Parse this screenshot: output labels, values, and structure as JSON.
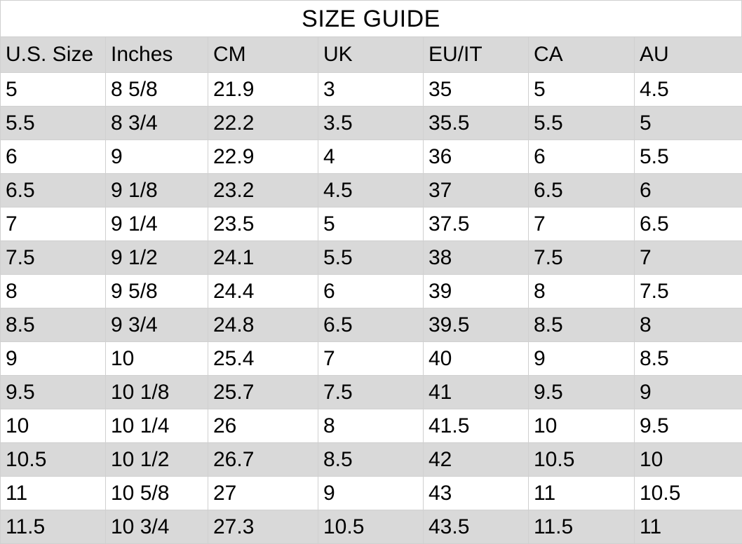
{
  "title": "SIZE GUIDE",
  "table": {
    "headers": [
      "U.S. Size",
      "Inches",
      "CM",
      "UK",
      "EU/IT",
      "CA",
      "AU"
    ],
    "rows": [
      [
        "5",
        "8 5/8",
        "21.9",
        "3",
        "35",
        "5",
        "4.5"
      ],
      [
        "5.5",
        "8 3/4",
        "22.2",
        "3.5",
        "35.5",
        "5.5",
        "5"
      ],
      [
        "6",
        "9",
        "22.9",
        "4",
        "36",
        "6",
        "5.5"
      ],
      [
        "6.5",
        "9 1/8",
        "23.2",
        "4.5",
        "37",
        "6.5",
        "6"
      ],
      [
        "7",
        "9 1/4",
        "23.5",
        "5",
        "37.5",
        "7",
        "6.5"
      ],
      [
        "7.5",
        "9 1/2",
        "24.1",
        "5.5",
        "38",
        "7.5",
        "7"
      ],
      [
        "8",
        "9 5/8",
        "24.4",
        "6",
        "39",
        "8",
        "7.5"
      ],
      [
        "8.5",
        "9 3/4",
        "24.8",
        "6.5",
        "39.5",
        "8.5",
        "8"
      ],
      [
        "9",
        "10",
        "25.4",
        "7",
        "40",
        "9",
        "8.5"
      ],
      [
        "9.5",
        "10 1/8",
        "25.7",
        "7.5",
        "41",
        "9.5",
        "9"
      ],
      [
        "10",
        "10 1/4",
        "26",
        "8",
        "41.5",
        "10",
        "9.5"
      ],
      [
        "10.5",
        "10 1/2",
        "26.7",
        "8.5",
        "42",
        "10.5",
        "10"
      ],
      [
        "11",
        "10 5/8",
        "27",
        "9",
        "43",
        "11",
        "10.5"
      ],
      [
        "11.5",
        "10 3/4",
        "27.3",
        "10.5",
        "43.5",
        "11.5",
        "11"
      ]
    ]
  },
  "colors": {
    "stripe": "#d9d9d9",
    "border": "#d0d0d0",
    "text": "#000000",
    "background": "#ffffff"
  }
}
